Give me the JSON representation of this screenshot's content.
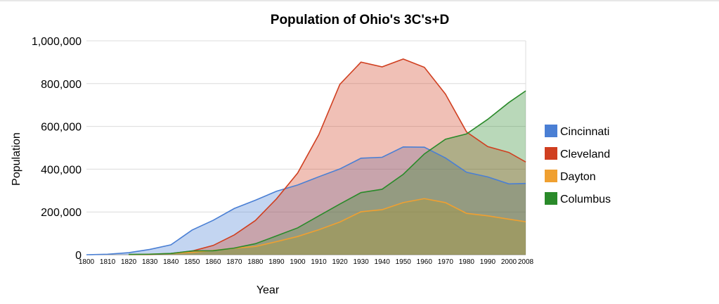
{
  "chart_data": {
    "type": "area",
    "title": "Population of Ohio's 3C's+D",
    "xlabel": "Year",
    "ylabel": "Population",
    "ylim": [
      0,
      1000000
    ],
    "yticks": [
      0,
      200000,
      400000,
      600000,
      800000,
      1000000
    ],
    "ytick_labels": [
      "0",
      "200,000",
      "400,000",
      "600,000",
      "800,000",
      "1,000,000"
    ],
    "x": [
      "1800",
      "1810",
      "1820",
      "1830",
      "1840",
      "1850",
      "1860",
      "1870",
      "1880",
      "1890",
      "1900",
      "1910",
      "1920",
      "1930",
      "1940",
      "1950",
      "1960",
      "1970",
      "1980",
      "1990",
      "2000",
      "2008"
    ],
    "grid": true,
    "legend_position": "right",
    "series": [
      {
        "name": "Cincinnati",
        "color": "#4a7fd4",
        "values": [
          0,
          2500,
          9600,
          24800,
          46300,
          115400,
          161000,
          216200,
          255100,
          296900,
          325900,
          364500,
          401200,
          451200,
          455600,
          503900,
          502600,
          452500,
          385500,
          364000,
          331300,
          333300
        ]
      },
      {
        "name": "Cleveland",
        "color": "#d03f20",
        "values": [
          null,
          null,
          600,
          1100,
          6100,
          17000,
          43400,
          92800,
          160100,
          261400,
          381800,
          560700,
          796800,
          900400,
          878300,
          914800,
          876100,
          750900,
          573800,
          505600,
          478400,
          433700
        ]
      },
      {
        "name": "Dayton",
        "color": "#f0a030",
        "values": [
          null,
          null,
          1100,
          2900,
          6100,
          10900,
          20100,
          30500,
          38700,
          61200,
          85300,
          116600,
          153000,
          200900,
          210700,
          243900,
          262300,
          243600,
          193500,
          182000,
          166200,
          154200
        ]
      },
      {
        "name": "Columbus",
        "color": "#2a8a2a",
        "values": [
          null,
          null,
          1500,
          2400,
          6000,
          17900,
          18600,
          31300,
          51600,
          88200,
          125600,
          181500,
          237000,
          290600,
          306100,
          375900,
          471300,
          540000,
          565000,
          633000,
          711500,
          766000
        ]
      }
    ]
  }
}
